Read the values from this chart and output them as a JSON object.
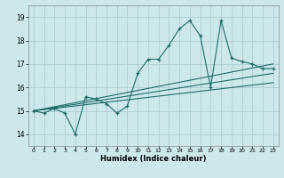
{
  "title": "",
  "xlabel": "Humidex (Indice chaleur)",
  "xlim": [
    -0.5,
    23.5
  ],
  "ylim": [
    13.5,
    19.5
  ],
  "yticks": [
    14,
    15,
    16,
    17,
    18,
    19
  ],
  "xticks": [
    0,
    1,
    2,
    3,
    4,
    5,
    6,
    7,
    8,
    9,
    10,
    11,
    12,
    13,
    14,
    15,
    16,
    17,
    18,
    19,
    20,
    21,
    22,
    23
  ],
  "bg_color": "#cde8eb",
  "grid_color": "#aacdd3",
  "line_color": "#1e6b68",
  "main_x": [
    0,
    1,
    2,
    3,
    4,
    5,
    6,
    7,
    8,
    9,
    10,
    11,
    12,
    13,
    14,
    15,
    16,
    17,
    18,
    19,
    20,
    21,
    22,
    23
  ],
  "main_y": [
    15.0,
    14.9,
    15.1,
    14.9,
    14.0,
    15.6,
    15.5,
    15.3,
    14.9,
    15.2,
    16.6,
    17.2,
    17.2,
    17.8,
    18.5,
    18.85,
    18.2,
    16.0,
    18.85,
    17.25,
    17.1,
    17.0,
    16.8,
    16.8
  ],
  "trend1_x": [
    0,
    23
  ],
  "trend1_y": [
    15.0,
    17.0
  ],
  "trend2_x": [
    0,
    23
  ],
  "trend2_y": [
    15.0,
    16.6
  ],
  "trend3_x": [
    0,
    23
  ],
  "trend3_y": [
    15.0,
    16.2
  ]
}
